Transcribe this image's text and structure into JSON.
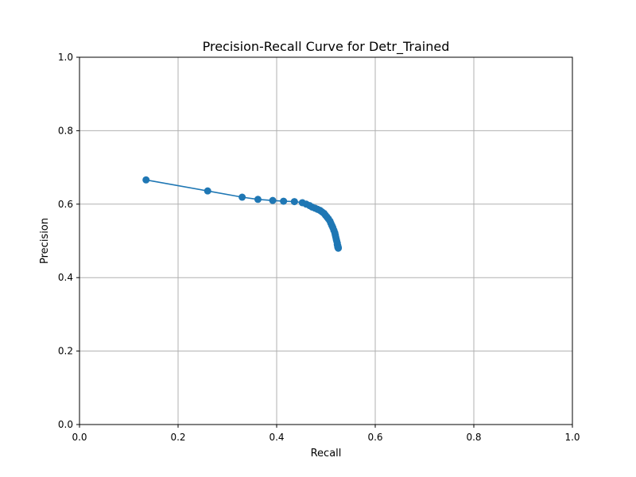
{
  "chart_data": {
    "type": "line",
    "title": "Precision-Recall Curve for Detr_Trained",
    "xlabel": "Recall",
    "ylabel": "Precision",
    "xlim": [
      0.0,
      1.0
    ],
    "ylim": [
      0.0,
      1.0
    ],
    "xticks": [
      "0.0",
      "0.2",
      "0.4",
      "0.6",
      "0.8",
      "1.0"
    ],
    "yticks": [
      "0.0",
      "0.2",
      "0.4",
      "0.6",
      "0.8",
      "1.0"
    ],
    "grid": true,
    "marker": "circle",
    "color": "#1f77b4",
    "series": [
      {
        "x": [
          0.135,
          0.26,
          0.33,
          0.362,
          0.392,
          0.414,
          0.436,
          0.452,
          0.46,
          0.467,
          0.472,
          0.478,
          0.483,
          0.488,
          0.492,
          0.496,
          0.499,
          0.502,
          0.505,
          0.508,
          0.51,
          0.512,
          0.514,
          0.516,
          0.518,
          0.519,
          0.52,
          0.521,
          0.522,
          0.523,
          0.523,
          0.524,
          0.524,
          0.524,
          0.525,
          0.525,
          0.525
        ],
        "y": [
          0.666,
          0.636,
          0.619,
          0.613,
          0.61,
          0.608,
          0.607,
          0.604,
          0.6,
          0.596,
          0.592,
          0.589,
          0.586,
          0.583,
          0.579,
          0.575,
          0.57,
          0.565,
          0.56,
          0.554,
          0.548,
          0.542,
          0.536,
          0.529,
          0.522,
          0.516,
          0.51,
          0.504,
          0.499,
          0.494,
          0.49,
          0.487,
          0.485,
          0.483,
          0.482,
          0.481,
          0.48
        ]
      }
    ]
  }
}
